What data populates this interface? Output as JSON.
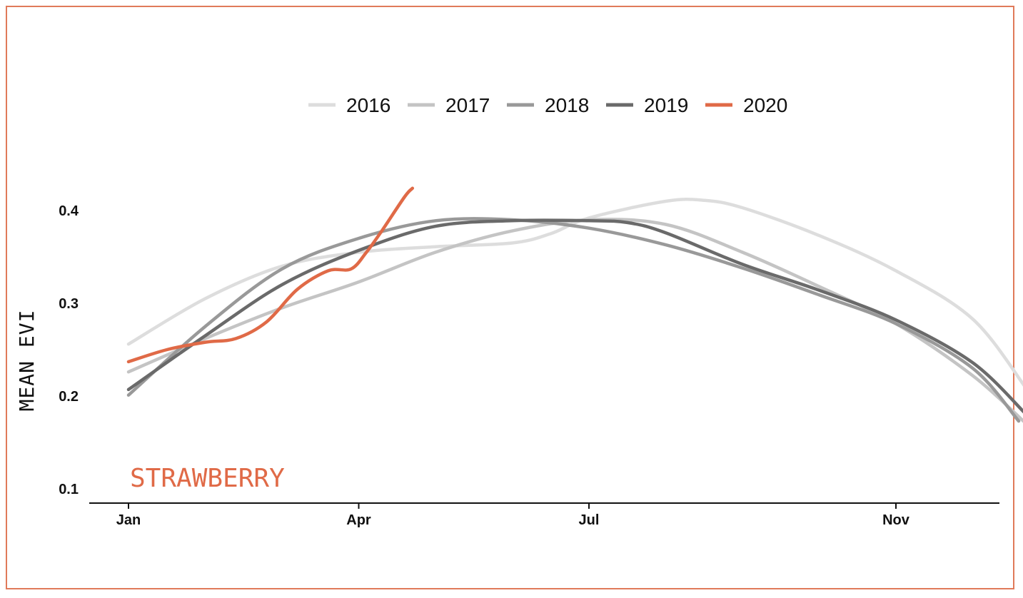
{
  "chart_data": {
    "type": "line",
    "ylabel": "MEAN EVI",
    "xlabel": "",
    "title": "",
    "annotation": "STRAWBERRY",
    "accent_color": "#e06a47",
    "x_ticks": [
      {
        "label": "Jan",
        "month": 1
      },
      {
        "label": "Apr",
        "month": 4
      },
      {
        "label": "Jul",
        "month": 7
      },
      {
        "label": "Nov",
        "month": 11
      }
    ],
    "y_ticks": [
      "0.1",
      "0.2",
      "0.3",
      "0.4"
    ],
    "ylim": [
      0.085,
      0.44
    ],
    "xlim": [
      0.5,
      13.0
    ],
    "legend_position": "top",
    "series": [
      {
        "name": "2016",
        "color": "#dddddd",
        "points": [
          [
            1,
            0.256
          ],
          [
            2,
            0.305
          ],
          [
            3,
            0.34
          ],
          [
            4,
            0.355
          ],
          [
            5,
            0.361
          ],
          [
            6,
            0.365
          ],
          [
            6.5,
            0.375
          ],
          [
            7,
            0.392
          ],
          [
            8,
            0.41
          ],
          [
            8.5,
            0.411
          ],
          [
            9,
            0.403
          ],
          [
            10,
            0.373
          ],
          [
            11,
            0.335
          ],
          [
            12,
            0.283
          ],
          [
            12.7,
            0.208
          ]
        ]
      },
      {
        "name": "2017",
        "color": "#c4c4c4",
        "points": [
          [
            1,
            0.226
          ],
          [
            2,
            0.262
          ],
          [
            3,
            0.295
          ],
          [
            4,
            0.323
          ],
          [
            5,
            0.355
          ],
          [
            6,
            0.378
          ],
          [
            7,
            0.39
          ],
          [
            8,
            0.385
          ],
          [
            9,
            0.355
          ],
          [
            10,
            0.318
          ],
          [
            11,
            0.278
          ],
          [
            12,
            0.222
          ],
          [
            12.7,
            0.17
          ]
        ]
      },
      {
        "name": "2018",
        "color": "#999999",
        "points": [
          [
            1,
            0.201
          ],
          [
            2,
            0.275
          ],
          [
            3,
            0.337
          ],
          [
            4,
            0.37
          ],
          [
            5,
            0.389
          ],
          [
            6,
            0.39
          ],
          [
            7,
            0.381
          ],
          [
            8,
            0.363
          ],
          [
            9,
            0.338
          ],
          [
            10,
            0.309
          ],
          [
            11,
            0.278
          ],
          [
            12,
            0.23
          ],
          [
            12.6,
            0.173
          ]
        ]
      },
      {
        "name": "2019",
        "color": "#6a6a6a",
        "points": [
          [
            1,
            0.207
          ],
          [
            2,
            0.265
          ],
          [
            3,
            0.32
          ],
          [
            4,
            0.357
          ],
          [
            5,
            0.383
          ],
          [
            6,
            0.389
          ],
          [
            7,
            0.389
          ],
          [
            7.5,
            0.387
          ],
          [
            8,
            0.376
          ],
          [
            9,
            0.342
          ],
          [
            10,
            0.314
          ],
          [
            11,
            0.282
          ],
          [
            12,
            0.236
          ],
          [
            12.7,
            0.18
          ]
        ]
      },
      {
        "name": "2020",
        "color": "#e06a47",
        "points": [
          [
            1,
            0.237
          ],
          [
            1.5,
            0.25
          ],
          [
            2,
            0.258
          ],
          [
            2.4,
            0.262
          ],
          [
            2.8,
            0.28
          ],
          [
            3.2,
            0.315
          ],
          [
            3.6,
            0.335
          ],
          [
            3.9,
            0.337
          ],
          [
            4.1,
            0.355
          ],
          [
            4.3,
            0.378
          ],
          [
            4.6,
            0.415
          ],
          [
            4.7,
            0.424
          ]
        ]
      }
    ]
  }
}
